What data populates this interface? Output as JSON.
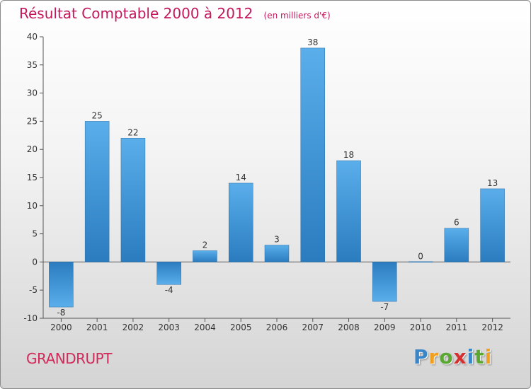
{
  "chart_data": {
    "type": "bar",
    "title": "Résultat Comptable 2000 à 2012",
    "unit": "(en milliers d'€)",
    "categories": [
      "2000",
      "2001",
      "2002",
      "2003",
      "2004",
      "2005",
      "2006",
      "2007",
      "2008",
      "2009",
      "2010",
      "2011",
      "2012"
    ],
    "values": [
      -8,
      25,
      22,
      -4,
      2,
      14,
      3,
      38,
      18,
      -7,
      0,
      6,
      13
    ],
    "ylim": [
      -10,
      40
    ],
    "yticks": [
      -10,
      -5,
      0,
      5,
      10,
      15,
      20,
      25,
      30,
      35,
      40
    ],
    "grid": false,
    "bar_color_dark": "#2a7cbf",
    "bar_color_light": "#5aaeea"
  },
  "commune": "GRANDRUPT",
  "logo": {
    "text": "Proxiti",
    "letters": [
      "P",
      "r",
      "o",
      "x",
      "i",
      "t",
      "i"
    ],
    "colors": [
      "#3a86c8",
      "#f0a020",
      "#5aa832",
      "#d43030",
      "#3a86c8",
      "#5aa832",
      "#f0a020"
    ]
  }
}
